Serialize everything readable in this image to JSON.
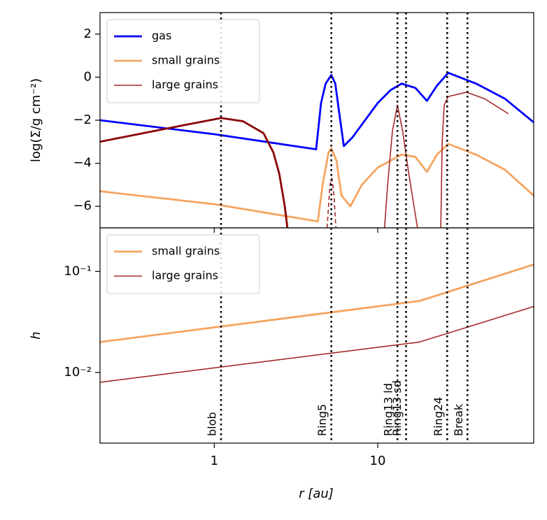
{
  "chart_data": [
    {
      "type": "line",
      "ylabel": "log(Σ/g cm⁻²)",
      "xscale": "log",
      "xlim": [
        0.2,
        90
      ],
      "ylim": [
        -7,
        3
      ],
      "yticks": [
        {
          "value": 2,
          "label": "2"
        },
        {
          "value": 0,
          "label": "0"
        },
        {
          "value": -2,
          "label": "−2"
        },
        {
          "value": -4,
          "label": "−4"
        },
        {
          "value": -6,
          "label": "−6"
        }
      ],
      "legend": "upper left",
      "series": [
        {
          "name": "gas",
          "color": "#0000ff",
          "linewidth": 2.8,
          "x": [
            0.2,
            1,
            4.2,
            4.5,
            4.8,
            5.2,
            5.5,
            5.8,
            6.2,
            7,
            8,
            10,
            12,
            14,
            17,
            20,
            23,
            27,
            40,
            60,
            90
          ],
          "values": [
            -2.0,
            -2.65,
            -3.35,
            -1.2,
            -0.3,
            0.1,
            -0.3,
            -1.6,
            -3.2,
            -2.8,
            -2.2,
            -1.2,
            -0.6,
            -0.3,
            -0.5,
            -1.1,
            -0.4,
            0.2,
            -0.3,
            -1.0,
            -2.1
          ]
        },
        {
          "name": "small grains",
          "color": "#f4a460",
          "linewidth": 2.8,
          "x": [
            0.2,
            1,
            4.3,
            4.6,
            5.0,
            5.2,
            5.6,
            6.0,
            6.8,
            8,
            10,
            14,
            17,
            20,
            23,
            27,
            40,
            60,
            90
          ],
          "values": [
            -5.3,
            -5.9,
            -6.7,
            -5.0,
            -3.5,
            -3.3,
            -3.9,
            -5.5,
            -6.0,
            -5.0,
            -4.2,
            -3.6,
            -3.7,
            -4.4,
            -3.6,
            -3.1,
            -3.6,
            -4.3,
            -5.5
          ]
        },
        {
          "name": "large grains",
          "color": "#a52a2a",
          "linewidth": 1.6,
          "x": [
            11,
            11.5,
            12.3,
            13.2,
            14.2,
            15.5,
            17.5,
            null,
            24.3,
            24.8,
            25.5,
            27,
            35,
            45,
            63
          ],
          "values": [
            -7,
            -5,
            -2.5,
            -1.3,
            -2.5,
            -4.5,
            -7,
            null,
            -7,
            -3,
            -1.3,
            -0.9,
            -0.7,
            -1.0,
            -1.7
          ]
        },
        {
          "color": "#8b0000",
          "linewidth": 2.8,
          "x": [
            0.2,
            0.5,
            1.1,
            1.5,
            2.0,
            2.3,
            2.5,
            2.7,
            2.8
          ],
          "values": [
            -3.0,
            -2.4,
            -1.9,
            -2.05,
            -2.6,
            -3.5,
            -4.5,
            -6.0,
            -7
          ]
        },
        {
          "color": "#a52a2a",
          "linewidth": 1.6,
          "linestyle": "dashed",
          "x": [
            4.9,
            5.1,
            5.25,
            5.4,
            5.55
          ],
          "values": [
            -7,
            -5,
            -4.7,
            -5.5,
            -7
          ]
        }
      ]
    },
    {
      "type": "line",
      "ylabel": "h",
      "xlabel": "r [au]",
      "xscale": "log",
      "xlim": [
        0.2,
        90
      ],
      "xticks": [
        1,
        10
      ],
      "yscale": "log",
      "ylim": [
        0.002,
        0.27
      ],
      "yticks": [
        {
          "value": 0.1,
          "label": "10⁻¹"
        },
        {
          "value": 0.01,
          "label": "10⁻²"
        }
      ],
      "legend": "upper left",
      "series": [
        {
          "name": "small grains",
          "color": "#f4a460",
          "linewidth": 2.8,
          "x": [
            0.2,
            18,
            90
          ],
          "values": [
            0.02,
            0.051,
            0.117
          ]
        },
        {
          "name": "large grains",
          "color": "#a52a2a",
          "linewidth": 1.6,
          "x": [
            0.2,
            18,
            90
          ],
          "values": [
            0.008,
            0.02,
            0.045
          ]
        }
      ],
      "vlines": [
        {
          "x": 1.1,
          "label": "blob"
        },
        {
          "x": 5.2,
          "label": "Ring5"
        },
        {
          "x": 13.2,
          "label": "Ring13 ld"
        },
        {
          "x": 14.9,
          "label": "Ring13 sd"
        },
        {
          "x": 26.6,
          "label": "Ring24"
        },
        {
          "x": 35.4,
          "label": "Break"
        }
      ]
    }
  ]
}
